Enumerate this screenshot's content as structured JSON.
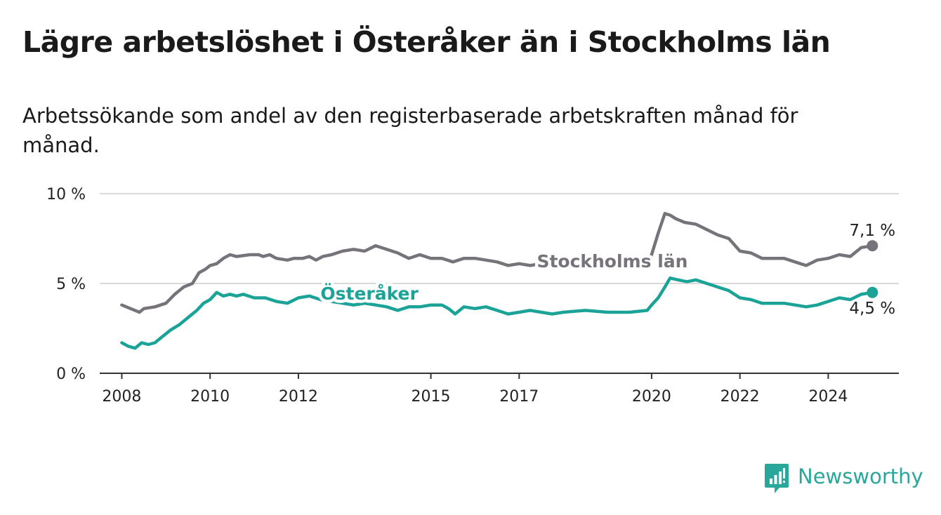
{
  "title": "Lägre arbetslöshet i Österåker än i Stockholms län",
  "subtitle": "Arbetssökande som andel av den registerbaserade arbetskraften månad för månad.",
  "brand": {
    "name": "Newsworthy",
    "icon": "newsworthy-logo-icon",
    "color": "#2aa79b"
  },
  "colors": {
    "stockholm": "#76747a",
    "osteraker": "#1aa396",
    "grid": "#d9d9d9",
    "axis": "#333333",
    "label_halo": "#ffffff"
  },
  "chart_data": {
    "type": "line",
    "title": "Lägre arbetslöshet i Österåker än i Stockholms län",
    "subtitle": "Arbetssökande som andel av den registerbaserade arbetskraften månad för månad.",
    "xlabel": "",
    "ylabel": "",
    "ylim": [
      0,
      10
    ],
    "xlim": [
      2007.5,
      2025.6
    ],
    "grid": true,
    "x_ticks": [
      2008,
      2010,
      2012,
      2015,
      2017,
      2020,
      2022,
      2024
    ],
    "x_tick_labels": [
      "2008",
      "2010",
      "2012",
      "2015",
      "2017",
      "2020",
      "2022",
      "2024"
    ],
    "y_ticks": [
      0,
      5,
      10
    ],
    "y_tick_labels": [
      "0 %",
      "5 %",
      "10 %"
    ],
    "series": [
      {
        "name": "Stockholms län",
        "color": "#76747a",
        "end_label": "7,1 %",
        "label_at": [
          2017.4,
          5.9
        ],
        "x": [
          2008.0,
          2008.3,
          2008.4,
          2008.5,
          2008.75,
          2009.0,
          2009.2,
          2009.4,
          2009.6,
          2009.75,
          2009.9,
          2010.0,
          2010.15,
          2010.3,
          2010.45,
          2010.6,
          2010.9,
          2011.1,
          2011.2,
          2011.35,
          2011.5,
          2011.75,
          2011.9,
          2012.1,
          2012.25,
          2012.4,
          2012.55,
          2012.75,
          2013.0,
          2013.25,
          2013.5,
          2013.75,
          2014.0,
          2014.25,
          2014.5,
          2014.75,
          2015.0,
          2015.25,
          2015.5,
          2015.75,
          2016.0,
          2016.25,
          2016.5,
          2016.75,
          2017.0,
          2017.25,
          2017.5,
          2017.75,
          2018.0,
          2018.5,
          2019.0,
          2019.5,
          2019.9,
          2020.0,
          2020.15,
          2020.3,
          2020.42,
          2020.55,
          2020.75,
          2021.0,
          2021.25,
          2021.5,
          2021.75,
          2022.0,
          2022.25,
          2022.5,
          2022.75,
          2023.0,
          2023.25,
          2023.5,
          2023.75,
          2024.0,
          2024.25,
          2024.5,
          2024.75,
          2025.0
        ],
        "values": [
          3.8,
          3.5,
          3.4,
          3.6,
          3.7,
          3.9,
          4.4,
          4.8,
          5.0,
          5.6,
          5.8,
          6.0,
          6.1,
          6.4,
          6.6,
          6.5,
          6.6,
          6.6,
          6.5,
          6.6,
          6.4,
          6.3,
          6.4,
          6.4,
          6.5,
          6.3,
          6.5,
          6.6,
          6.8,
          6.9,
          6.8,
          7.1,
          6.9,
          6.7,
          6.4,
          6.6,
          6.4,
          6.4,
          6.2,
          6.4,
          6.4,
          6.3,
          6.2,
          6.0,
          6.1,
          6.0,
          6.1,
          6.0,
          5.9,
          6.0,
          6.0,
          6.1,
          6.2,
          6.6,
          7.8,
          8.9,
          8.8,
          8.6,
          8.4,
          8.3,
          8.0,
          7.7,
          7.5,
          6.8,
          6.7,
          6.4,
          6.4,
          6.4,
          6.2,
          6.0,
          6.3,
          6.4,
          6.6,
          6.5,
          7.0,
          7.1
        ]
      },
      {
        "name": "Österåker",
        "color": "#1aa396",
        "end_label": "4,5 %",
        "label_at": [
          2012.5,
          4.1
        ],
        "x": [
          2008.0,
          2008.15,
          2008.3,
          2008.45,
          2008.6,
          2008.75,
          2008.9,
          2009.1,
          2009.3,
          2009.5,
          2009.7,
          2009.85,
          2010.0,
          2010.15,
          2010.3,
          2010.45,
          2010.6,
          2010.75,
          2011.0,
          2011.25,
          2011.5,
          2011.75,
          2012.0,
          2012.25,
          2012.5,
          2012.75,
          2013.0,
          2013.25,
          2013.5,
          2013.75,
          2014.0,
          2014.25,
          2014.5,
          2014.75,
          2015.0,
          2015.25,
          2015.4,
          2015.55,
          2015.75,
          2016.0,
          2016.25,
          2016.5,
          2016.75,
          2017.0,
          2017.25,
          2017.5,
          2017.75,
          2018.0,
          2018.5,
          2019.0,
          2019.5,
          2019.9,
          2020.0,
          2020.15,
          2020.3,
          2020.42,
          2020.6,
          2020.8,
          2021.0,
          2021.25,
          2021.5,
          2021.75,
          2022.0,
          2022.25,
          2022.5,
          2022.75,
          2023.0,
          2023.25,
          2023.5,
          2023.75,
          2024.0,
          2024.25,
          2024.5,
          2024.75,
          2025.0
        ],
        "values": [
          1.7,
          1.5,
          1.4,
          1.7,
          1.6,
          1.7,
          2.0,
          2.4,
          2.7,
          3.1,
          3.5,
          3.9,
          4.1,
          4.5,
          4.3,
          4.4,
          4.3,
          4.4,
          4.2,
          4.2,
          4.0,
          3.9,
          4.2,
          4.3,
          4.1,
          4.0,
          3.9,
          3.8,
          3.9,
          3.8,
          3.7,
          3.5,
          3.7,
          3.7,
          3.8,
          3.8,
          3.6,
          3.3,
          3.7,
          3.6,
          3.7,
          3.5,
          3.3,
          3.4,
          3.5,
          3.4,
          3.3,
          3.4,
          3.5,
          3.4,
          3.4,
          3.5,
          3.8,
          4.2,
          4.8,
          5.3,
          5.2,
          5.1,
          5.2,
          5.0,
          4.8,
          4.6,
          4.2,
          4.1,
          3.9,
          3.9,
          3.9,
          3.8,
          3.7,
          3.8,
          4.0,
          4.2,
          4.1,
          4.4,
          4.5
        ]
      }
    ]
  }
}
